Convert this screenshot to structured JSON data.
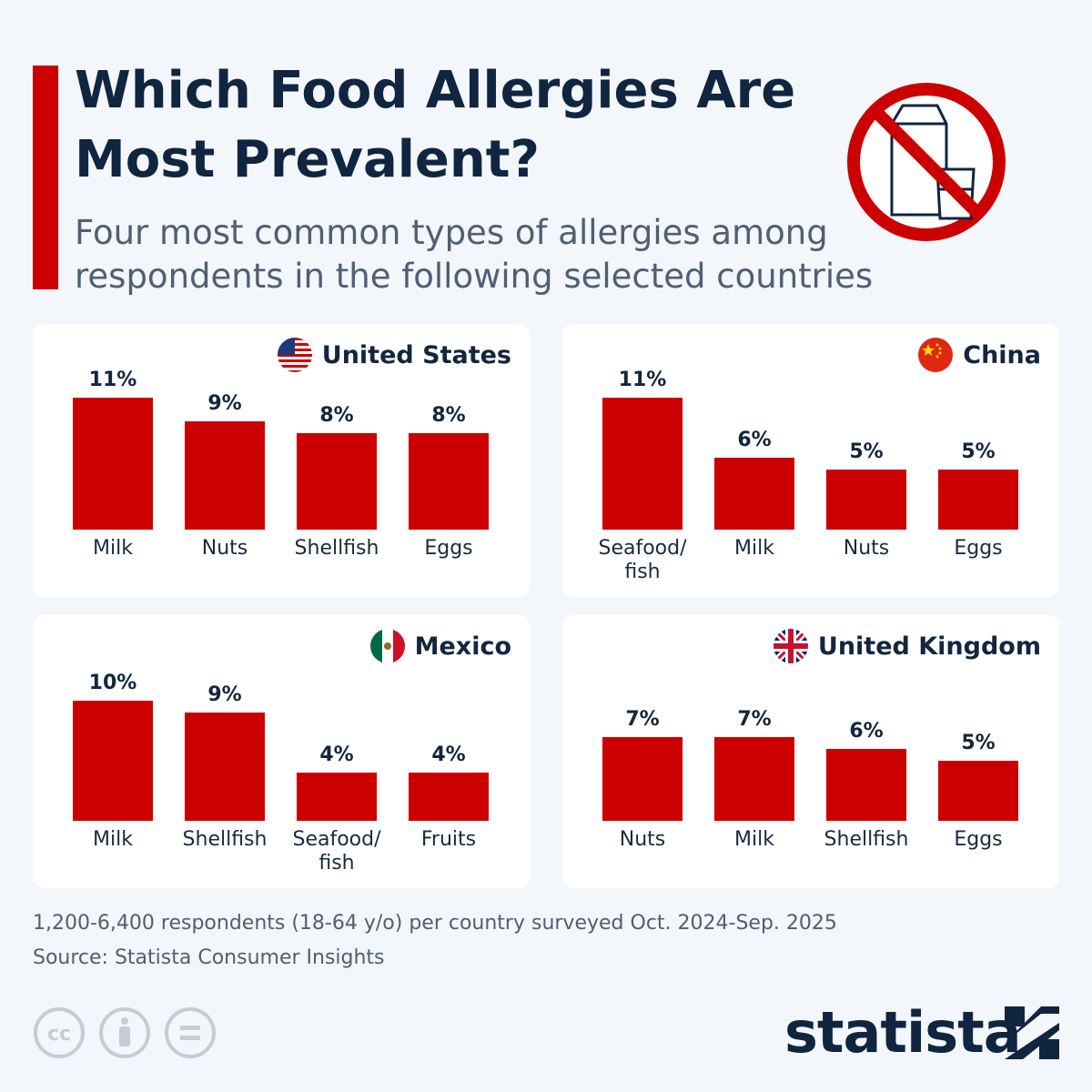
{
  "header": {
    "title": "Which Food Allergies Are Most Prevalent?",
    "subtitle": "Four most common types of allergies among respondents in the following selected countries"
  },
  "chart_data": [
    {
      "type": "bar",
      "title": "United States",
      "categories": [
        "Milk",
        "Nuts",
        "Shellfish",
        "Eggs"
      ],
      "values": [
        11,
        9,
        8,
        8
      ],
      "value_labels": [
        "11%",
        "9%",
        "8%",
        "8%"
      ],
      "color": "#cc0000"
    },
    {
      "type": "bar",
      "title": "China",
      "categories": [
        "Seafood/ fish",
        "Milk",
        "Nuts",
        "Eggs"
      ],
      "values": [
        11,
        6,
        5,
        5
      ],
      "value_labels": [
        "11%",
        "6%",
        "5%",
        "5%"
      ],
      "color": "#cc0000"
    },
    {
      "type": "bar",
      "title": "Mexico",
      "categories": [
        "Milk",
        "Shellfish",
        "Seafood/ fish",
        "Fruits"
      ],
      "values": [
        10,
        9,
        4,
        4
      ],
      "value_labels": [
        "10%",
        "9%",
        "4%",
        "4%"
      ],
      "color": "#cc0000"
    },
    {
      "type": "bar",
      "title": "United Kingdom",
      "categories": [
        "Nuts",
        "Milk",
        "Shellfish",
        "Eggs"
      ],
      "values": [
        7,
        7,
        6,
        5
      ],
      "value_labels": [
        "7%",
        "7%",
        "6%",
        "5%"
      ],
      "color": "#cc0000"
    }
  ],
  "footer": {
    "note": "1,200-6,400 respondents (18-64 y/o) per country surveyed Oct. 2024-Sep. 2025",
    "source": "Source: Statista Consumer Insights",
    "license": "cc",
    "logo": "statista"
  }
}
